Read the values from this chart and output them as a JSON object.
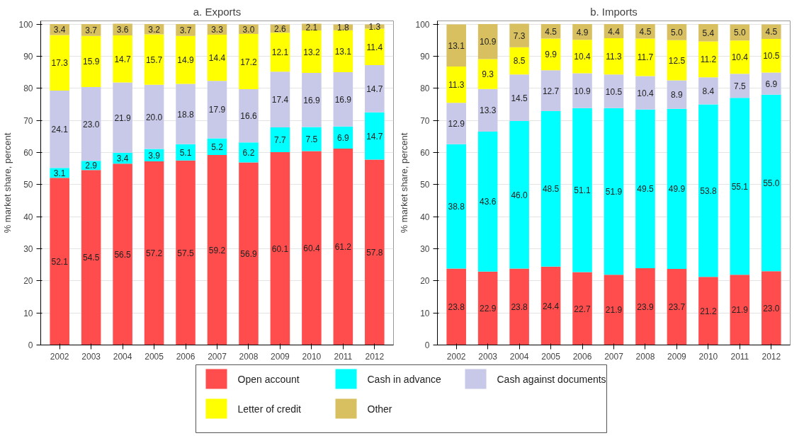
{
  "chart_data": [
    {
      "type": "bar",
      "title": "a. Exports",
      "ylabel": "% market share, percent",
      "stacked": true,
      "data_labels": true,
      "grid": "y",
      "legend": "bottom",
      "categories": [
        "2002",
        "2003",
        "2004",
        "2005",
        "2006",
        "2007",
        "2008",
        "2009",
        "2010",
        "2011",
        "2012"
      ],
      "ylim": [
        0,
        101
      ],
      "yticks": [
        0,
        10,
        20,
        30,
        40,
        50,
        60,
        70,
        80,
        90,
        100
      ],
      "series": [
        {
          "name": "Open account",
          "color": "#ff4d4d",
          "values": [
            52.1,
            54.5,
            56.5,
            57.2,
            57.5,
            59.2,
            56.9,
            60.1,
            60.4,
            61.2,
            57.8
          ]
        },
        {
          "name": "Cash in advance",
          "color": "#00ffff",
          "values": [
            3.1,
            2.9,
            3.4,
            3.9,
            5.1,
            5.2,
            6.2,
            7.7,
            7.5,
            6.9,
            14.7
          ]
        },
        {
          "name": "Cash against documents",
          "color": "#c8c8e8",
          "values": [
            24.1,
            23.0,
            21.9,
            20.0,
            18.8,
            17.9,
            16.6,
            17.4,
            16.9,
            16.9,
            14.7
          ],
          "value_labels": [
            "24.1",
            "23.0",
            "21.9",
            "20.0",
            "18.8",
            "17.9",
            "16.6",
            "17.4",
            "16.9",
            "16.9",
            "14.7"
          ]
        },
        {
          "name": "Letter of credit",
          "color": "#ffff00",
          "values": [
            17.3,
            15.9,
            14.7,
            15.7,
            14.9,
            14.4,
            17.2,
            12.1,
            13.2,
            13.1,
            11.4
          ]
        },
        {
          "name": "Other",
          "color": "#d8c060",
          "values": [
            3.4,
            3.7,
            3.6,
            3.2,
            3.7,
            3.3,
            3.0,
            2.6,
            2.1,
            1.8,
            1.3
          ],
          "value_labels": [
            "3.4",
            "3.7",
            "3.6",
            "3.2",
            "3.7",
            "3.3",
            "3.0",
            "2.6",
            "2.1",
            "1.8",
            "1.3"
          ]
        }
      ]
    },
    {
      "type": "bar",
      "title": "b. Imports",
      "ylabel": "% market share, percent",
      "stacked": true,
      "data_labels": true,
      "grid": "y",
      "categories": [
        "2002",
        "2003",
        "2004",
        "2005",
        "2006",
        "2007",
        "2008",
        "2009",
        "2010",
        "2011",
        "2012"
      ],
      "ylim": [
        0,
        101
      ],
      "yticks": [
        0,
        10,
        20,
        30,
        40,
        50,
        60,
        70,
        80,
        90,
        100
      ],
      "series": [
        {
          "color": "#ff4d4d",
          "values": [
            23.8,
            22.9,
            23.8,
            24.4,
            22.7,
            21.9,
            23.9,
            23.7,
            21.2,
            21.9,
            23.0
          ],
          "value_labels": [
            "23.8",
            "22.9",
            "23.8",
            "24.4",
            "22.7",
            "21.9",
            "23.9",
            "23.7",
            "21.2",
            "21.9",
            "23.0"
          ]
        },
        {
          "color": "#00ffff",
          "values": [
            38.8,
            43.6,
            46.0,
            48.5,
            51.1,
            51.9,
            49.5,
            49.9,
            53.8,
            55.1,
            55.0
          ],
          "value_labels": [
            "38.8",
            "43.6",
            "46.0",
            "48.5",
            "51.1",
            "51.9",
            "49.5",
            "49.9",
            "53.8",
            "55.1",
            "55.0"
          ]
        },
        {
          "color": "#c8c8e8",
          "values": [
            12.9,
            13.3,
            14.5,
            12.7,
            10.9,
            10.5,
            10.4,
            8.9,
            8.4,
            7.5,
            6.9
          ]
        },
        {
          "color": "#ffff00",
          "values": [
            11.3,
            9.3,
            8.5,
            9.9,
            10.4,
            11.3,
            11.7,
            12.5,
            11.2,
            10.4,
            10.5
          ]
        },
        {
          "color": "#d8c060",
          "values": [
            13.1,
            10.9,
            7.3,
            4.5,
            4.9,
            4.4,
            4.5,
            5.0,
            5.4,
            5.0,
            4.5
          ],
          "value_labels": [
            "13.1",
            "10.9",
            "7.3",
            "4.5",
            "4.9",
            "4.4",
            "4.5",
            "5.0",
            "5.4",
            "5.0",
            "4.5"
          ]
        }
      ]
    }
  ]
}
